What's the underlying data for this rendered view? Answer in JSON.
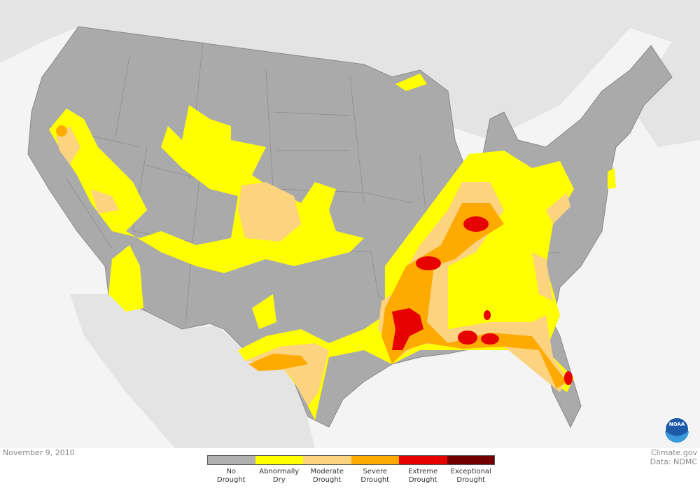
{
  "date": "November 9, 2010",
  "credit": {
    "line1": "Climate.gov",
    "line2": "Data: NDMC"
  },
  "logo": "NOAA",
  "legend": [
    {
      "label1": "No",
      "label2": "Drought",
      "color": "#b0b0b0"
    },
    {
      "label1": "Abnormally",
      "label2": "Dry",
      "color": "#ffff00"
    },
    {
      "label1": "Moderate",
      "label2": "Drought",
      "color": "#fcd37f"
    },
    {
      "label1": "Severe",
      "label2": "Drought",
      "color": "#ffaa00"
    },
    {
      "label1": "Extreme",
      "label2": "Drought",
      "color": "#e60000"
    },
    {
      "label1": "Exceptional",
      "label2": "Drought",
      "color": "#730000"
    }
  ]
}
